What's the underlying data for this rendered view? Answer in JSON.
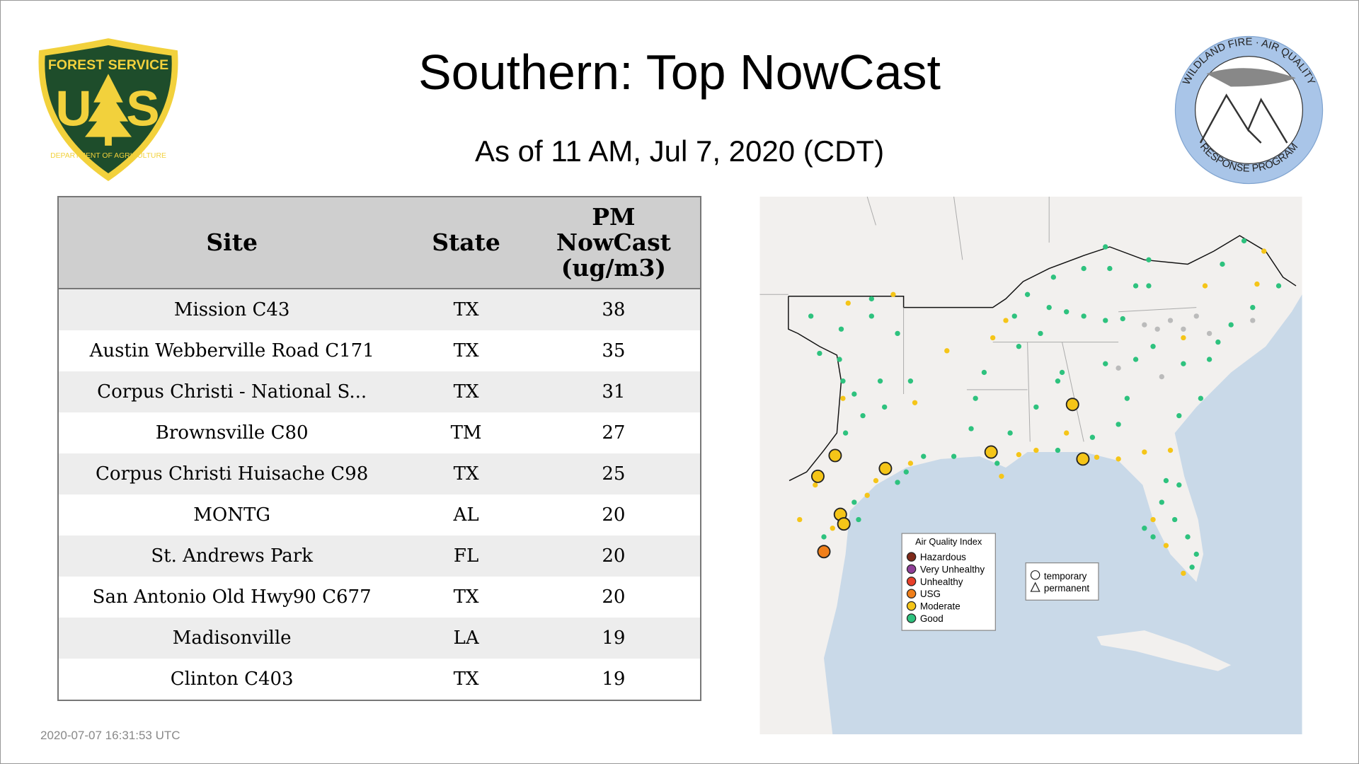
{
  "header": {
    "title": "Southern: Top NowCast",
    "subtitle": "As of 11 AM, Jul  7, 2020 (CDT)"
  },
  "logos": {
    "left": {
      "top": "FOREST SERVICE",
      "letter_left": "U",
      "letter_right": "S",
      "bottom": "DEPARTMENT OF AGRICULTURE"
    },
    "right": {
      "top": "WILDLAND FIRE · AIR QUALITY",
      "bottom": "RESPONSE PROGRAM"
    }
  },
  "table": {
    "columns": [
      "Site",
      "State",
      "PM NowCast (ug/m3)"
    ],
    "rows": [
      [
        "Mission C43",
        "TX",
        38
      ],
      [
        "Austin Webberville Road C171",
        "TX",
        35
      ],
      [
        "Corpus Christi - National S...",
        "TX",
        31
      ],
      [
        "Brownsville C80",
        "TM",
        27
      ],
      [
        "Corpus Christi Huisache C98",
        "TX",
        25
      ],
      [
        "MONTG",
        "AL",
        20
      ],
      [
        "St. Andrews Park",
        "FL",
        20
      ],
      [
        "San Antonio Old Hwy90 C677",
        "TX",
        20
      ],
      [
        "Madisonville",
        "LA",
        19
      ],
      [
        "Clinton C403",
        "TX",
        19
      ]
    ]
  },
  "map": {
    "legend": {
      "title": "Air Quality Index",
      "items": [
        {
          "label": "Hazardous",
          "color": "#7e2a1a"
        },
        {
          "label": "Very Unhealthy",
          "color": "#8f3f97"
        },
        {
          "label": "Unhealthy",
          "color": "#e8402a"
        },
        {
          "label": "USG",
          "color": "#f07f1a"
        },
        {
          "label": "Moderate",
          "color": "#f5c518"
        },
        {
          "label": "Good",
          "color": "#2ec27e"
        }
      ]
    },
    "shapes": [
      "temporary",
      "permanent"
    ]
  },
  "footer": {
    "timestamp": "2020-07-07 16:31:53 UTC"
  }
}
